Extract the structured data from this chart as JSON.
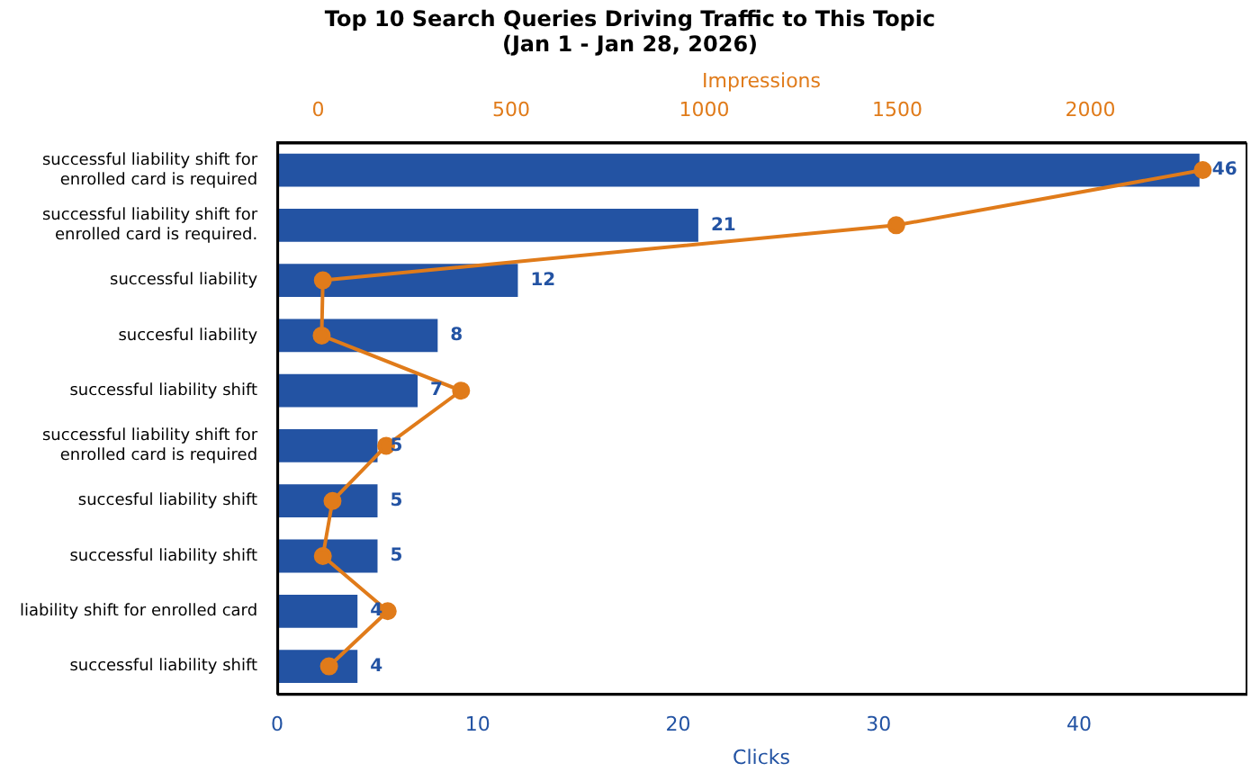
{
  "chart_data": {
    "type": "bar",
    "orientation": "horizontal",
    "title": "Top 10 Search Queries Driving Traffic to This Topic\n(Jan 1 - Jan 28, 2026)",
    "xlabel": "Clicks",
    "x2label": "Impressions",
    "categories": [
      "successful liability shift for enrolled card is required",
      "successful liability shift for enrolled card is required.",
      "successful liability",
      "succesful liability",
      "successful liability shift",
      "successful liability shift for enrolled card is required",
      "succesful liability shift",
      "successful liability shift",
      "liability shift for enrolled card",
      "successful liability shift"
    ],
    "series": [
      {
        "color": "#2353a3",
        "values": [
          46,
          21,
          12,
          8,
          7,
          5,
          5,
          5,
          4,
          4
        ],
        "value_labels": [
          "46",
          "21",
          "12",
          "8",
          "7",
          "5",
          "5",
          "5",
          "4",
          "4"
        ]
      },
      {
        "type": "line",
        "axis": "x2",
        "color": "#e07b1a",
        "values": [
          2291,
          1497,
          12,
          9,
          370,
          176,
          37,
          12,
          180,
          28
        ]
      }
    ],
    "xlim": [
      0,
      48.3
    ],
    "xticks": [
      0,
      10,
      20,
      30,
      40
    ],
    "x2lim": [
      -106,
      2402
    ],
    "x2ticks": [
      0,
      500,
      1000,
      1500,
      2000
    ],
    "marker": "circle",
    "line_style": "solid",
    "grid": false,
    "legend": false
  }
}
